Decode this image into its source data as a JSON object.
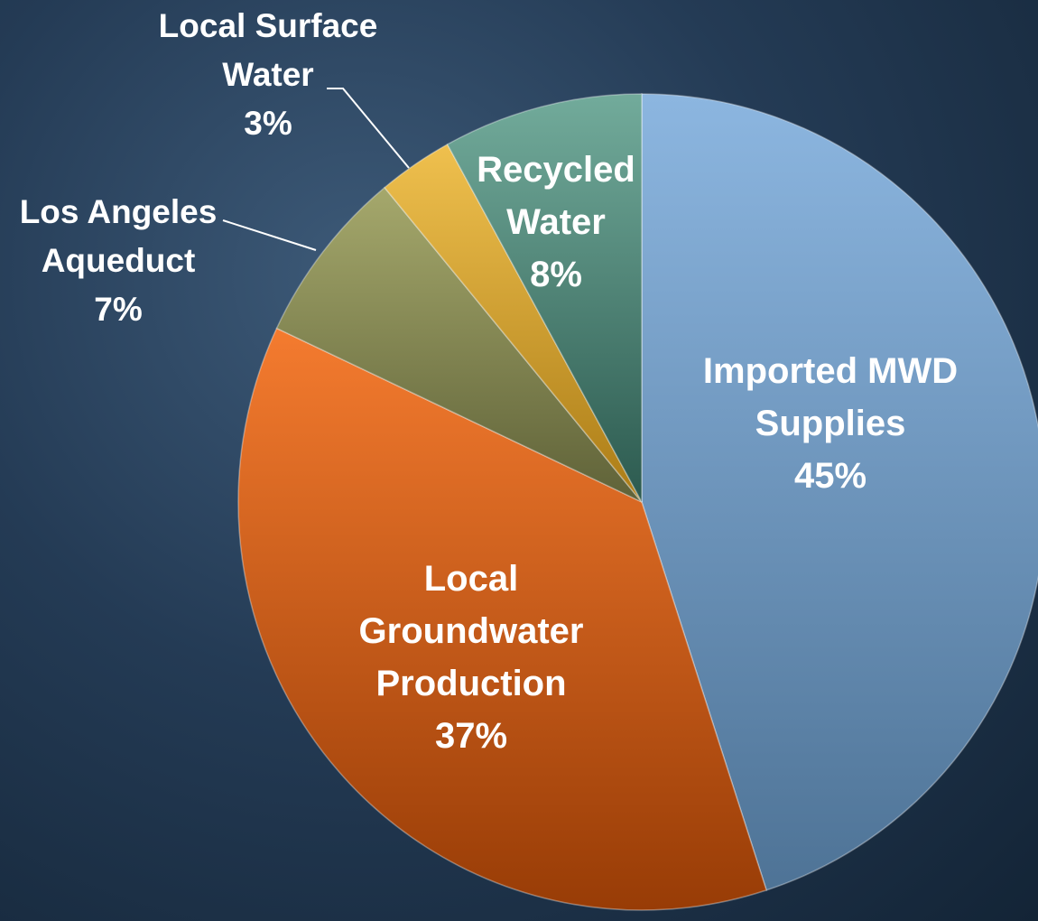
{
  "chart_data": {
    "type": "pie",
    "slices": [
      {
        "label": [
          "Imported MWD",
          "Supplies"
        ],
        "value": 45,
        "pct_label": "45%",
        "color": "#6f97bf"
      },
      {
        "label": [
          "Local",
          "Groundwater",
          "Production"
        ],
        "value": 37,
        "pct_label": "37%",
        "color": "#d65a14"
      },
      {
        "label": [
          "Los Angeles",
          "Aqueduct"
        ],
        "value": 7,
        "pct_label": "7%",
        "color": "#8b8e55"
      },
      {
        "label": [
          "Local Surface",
          "Water"
        ],
        "value": 3,
        "pct_label": "3%",
        "color": "#d9a72e"
      },
      {
        "label": [
          "Recycled",
          "Water"
        ],
        "value": 8,
        "pct_label": "8%",
        "color": "#4a8474"
      }
    ],
    "start": "12 o'clock",
    "direction": "clockwise",
    "legend": "none"
  }
}
